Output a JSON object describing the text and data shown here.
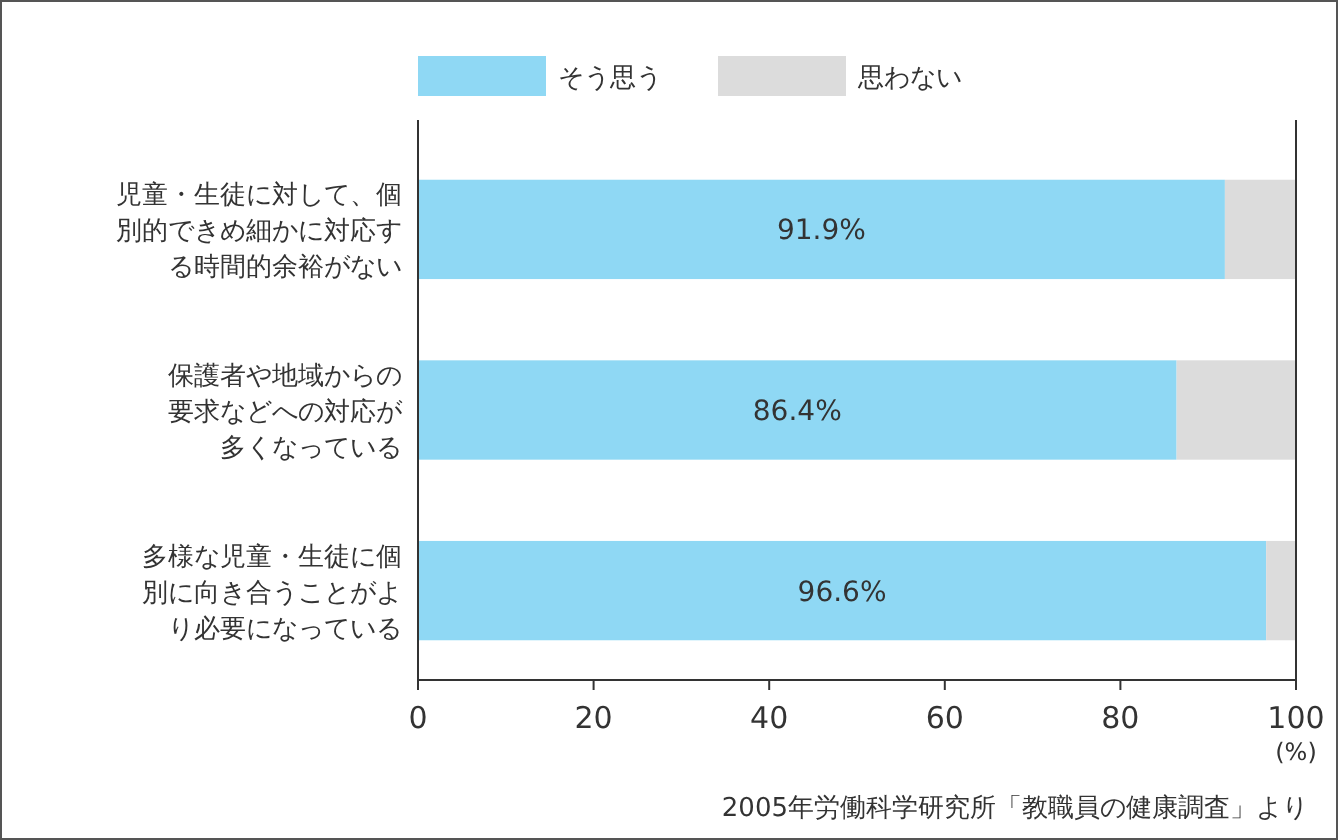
{
  "chart_data": {
    "type": "bar",
    "orientation": "horizontal",
    "stacked": true,
    "categories": [
      "児童・生徒に対して、個別的できめ細かに対応する時間的余裕がない",
      "保護者や地域からの要求などへの対応が多くなっている",
      "多様な児童・生徒に個別に向き合うことがより必要になっている"
    ],
    "series": [
      {
        "name": "そう思う",
        "color": "#8fd8f4",
        "values": [
          91.9,
          86.4,
          96.6
        ],
        "value_labels": [
          "91.9%",
          "86.4%",
          "96.6%"
        ]
      },
      {
        "name": "思わない",
        "color": "#dcdcdc",
        "values": [
          8.1,
          13.6,
          3.4
        ]
      }
    ],
    "xlim": [
      0,
      100
    ],
    "xticks": [
      0,
      20,
      40,
      60,
      80,
      100
    ],
    "xlabel": "(%)",
    "legend": "top",
    "grid": false,
    "annotations": [
      "2005年労働科学研究所「教職員の健康調査」より"
    ]
  }
}
